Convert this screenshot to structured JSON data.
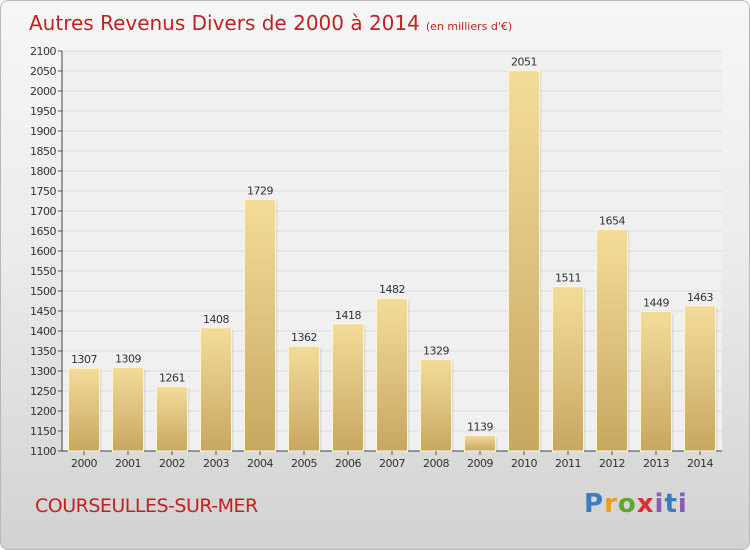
{
  "title": "Autres Revenus Divers de 2000 à 2014",
  "subtitle": "(en milliers d'€)",
  "place": "COURSEULLES-SUR-MER",
  "logo": "Proxiti",
  "colors": {
    "title": "#c52020",
    "bar_light": "#f3dc9a",
    "bar_dark": "#c8a760"
  },
  "chart_data": {
    "type": "bar",
    "title": "Autres Revenus Divers de 2000 à 2014",
    "subtitle": "(en milliers d'€)",
    "xlabel": "",
    "ylabel": "",
    "categories": [
      "2000",
      "2001",
      "2002",
      "2003",
      "2004",
      "2005",
      "2006",
      "2007",
      "2008",
      "2009",
      "2010",
      "2011",
      "2012",
      "2013",
      "2014"
    ],
    "values": [
      1307,
      1309,
      1261,
      1408,
      1729,
      1362,
      1418,
      1482,
      1329,
      1139,
      2051,
      1511,
      1654,
      1449,
      1463
    ],
    "ylim": [
      1100,
      2100
    ],
    "ytick_step": 50,
    "grid": true,
    "legend": "none"
  }
}
